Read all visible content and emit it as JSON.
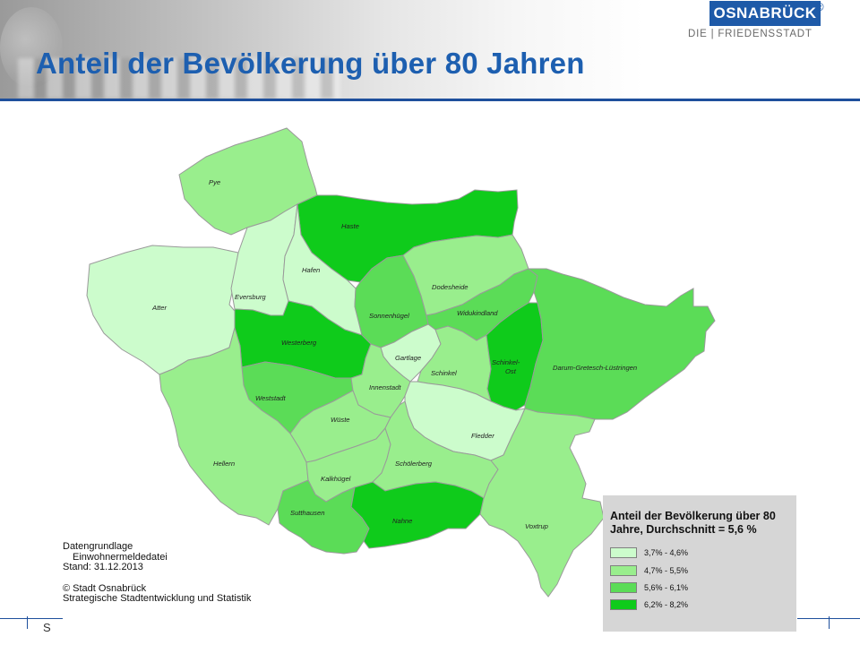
{
  "header": {
    "title": "Anteil der Bevölkerung über 80 Jahren",
    "logo_text": "OSNABRÜCK",
    "logo_registered": "®",
    "logo_subtitle": "DIE | FRIEDENSSTADT"
  },
  "colors": {
    "class_1": "#ccfccc",
    "class_2": "#99ee8d",
    "class_3": "#5bdc57",
    "class_4": "#0fcb1b",
    "accent_blue": "#1d5fb0"
  },
  "districts": [
    {
      "name": "Pye",
      "class": 2
    },
    {
      "name": "Haste",
      "class": 4
    },
    {
      "name": "Hafen",
      "class": 1
    },
    {
      "name": "Atter",
      "class": 1
    },
    {
      "name": "Eversburg",
      "class": 1
    },
    {
      "name": "Westerberg",
      "class": 4
    },
    {
      "name": "Sonnenhügel",
      "class": 3
    },
    {
      "name": "Dodesheide",
      "class": 2
    },
    {
      "name": "Widukindland",
      "class": 3
    },
    {
      "name": "Gartlage",
      "class": 1
    },
    {
      "name": "Schinkel",
      "class": 2
    },
    {
      "name": "Schinkel-",
      "class": 4
    },
    {
      "name": "Ost",
      "class": 4
    },
    {
      "name": "Darum-Gretesch-Lüstringen",
      "class": 3
    },
    {
      "name": "Weststadt",
      "class": 3
    },
    {
      "name": "Innenstadt",
      "class": 2
    },
    {
      "name": "Wüste",
      "class": 2
    },
    {
      "name": "Fledder",
      "class": 1
    },
    {
      "name": "Hellern",
      "class": 2
    },
    {
      "name": "Schölerberg",
      "class": 2
    },
    {
      "name": "Kalkhügel",
      "class": 2
    },
    {
      "name": "Sutthausen",
      "class": 3
    },
    {
      "name": "Nahne",
      "class": 4
    },
    {
      "name": "Voxtrup",
      "class": 2
    }
  ],
  "legend": {
    "title": "Anteil der Bevölkerung über 80 Jahre, Durchschnitt = 5,6 %",
    "items": [
      {
        "label": "3,7% - 4,6%",
        "color": "#ccfccc"
      },
      {
        "label": "4,7% - 5,5%",
        "color": "#99ee8d"
      },
      {
        "label": "5,6% - 6,1%",
        "color": "#5bdc57"
      },
      {
        "label": "6,2% - 8,2%",
        "color": "#0fcb1b"
      }
    ]
  },
  "source": {
    "line1": "Datengrundlage",
    "line2": "Einwohnermeldedatei",
    "line3": "Stand: 31.12.2013",
    "line4": "© Stadt Osnabrück",
    "line5": "Strategische Stadtentwicklung und Statistik"
  },
  "footer": {
    "letter": "S"
  }
}
